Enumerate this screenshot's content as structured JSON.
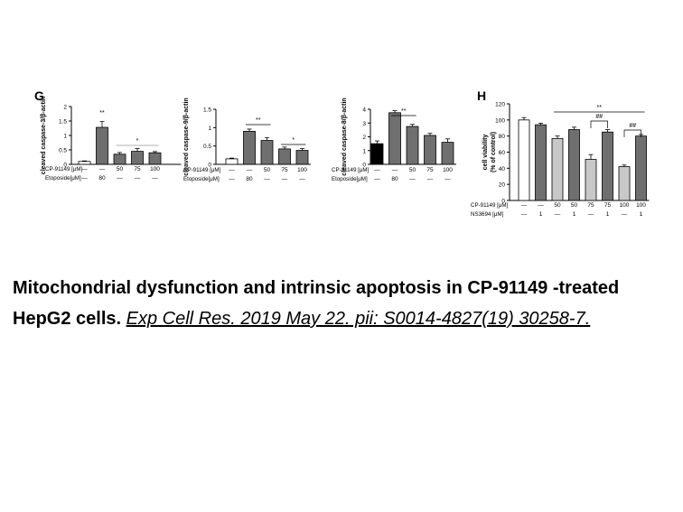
{
  "figure": {
    "panel_labels": [
      "G",
      "H"
    ]
  },
  "chart_data": [
    {
      "type": "bar",
      "panel": "G",
      "ylabel": "cleaved caspase-3/β-actin",
      "ylim": [
        0,
        2
      ],
      "yticks": [
        "0",
        "0.5",
        "1",
        "1.5",
        "2"
      ],
      "categories": [
        "1",
        "2",
        "3",
        "4",
        "5",
        "6"
      ],
      "values": [
        0.1,
        1.28,
        0.35,
        0.45,
        0.4,
        0
      ],
      "errors": [
        0.02,
        0.2,
        0.06,
        0.1,
        0.04,
        0
      ],
      "colors": [
        "#ffffff",
        "#6f6f6f",
        "#6f6f6f",
        "#6f6f6f",
        "#6f6f6f",
        "#6f6f6f"
      ],
      "hidden": [
        false,
        false,
        false,
        false,
        false,
        true
      ],
      "annotations": [
        {
          "text": "**",
          "bar": 1
        },
        {
          "text": "*",
          "bracket": [
            2,
            4
          ]
        }
      ],
      "rows": [
        {
          "label": "CP-91149 [μM]",
          "values": [
            "—",
            "—",
            "50",
            "75",
            "100"
          ]
        },
        {
          "label": "Etoposide[μM]",
          "values": [
            "—",
            "80",
            "—",
            "—",
            "—"
          ]
        }
      ]
    },
    {
      "type": "bar",
      "panel": "G",
      "ylabel": "cleaved caspase-9/β-actin",
      "ylim": [
        0,
        1.5
      ],
      "yticks": [
        "0",
        "0.5",
        "1",
        "1.5"
      ],
      "categories": [
        "1",
        "2",
        "3",
        "4",
        "5"
      ],
      "values": [
        0.15,
        0.9,
        0.65,
        0.42,
        0.38
      ],
      "errors": [
        0.02,
        0.06,
        0.08,
        0.05,
        0.05
      ],
      "colors": [
        "#ffffff",
        "#6f6f6f",
        "#6f6f6f",
        "#6f6f6f",
        "#6f6f6f"
      ],
      "annotations": [
        {
          "text": "**",
          "bracket": [
            1,
            2
          ]
        },
        {
          "text": "*",
          "bracket": [
            3,
            4
          ]
        }
      ],
      "rows": [
        {
          "label": "CP-91149 [μM]",
          "values": [
            "—",
            "—",
            "50",
            "75",
            "100"
          ]
        },
        {
          "label": "Etoposide[μM]",
          "values": [
            "—",
            "80",
            "—",
            "—",
            "—"
          ]
        }
      ]
    },
    {
      "type": "bar",
      "panel": "G",
      "ylabel": "cleaved caspase-8/β-actin",
      "ylim": [
        0,
        4
      ],
      "yticks": [
        "0",
        "1",
        "2",
        "3",
        "4"
      ],
      "categories": [
        "1",
        "2",
        "3",
        "4",
        "5"
      ],
      "values": [
        1.5,
        3.75,
        2.75,
        2.1,
        1.6
      ],
      "errors": [
        0.2,
        0.15,
        0.15,
        0.15,
        0.25
      ],
      "colors": [
        "#000000",
        "#6f6f6f",
        "#6f6f6f",
        "#6f6f6f",
        "#6f6f6f"
      ],
      "annotations": [
        {
          "text": "**",
          "bracket": [
            1,
            2
          ]
        }
      ],
      "rows": [
        {
          "label": "CP-91149 [μM]",
          "values": [
            "—",
            "—",
            "50",
            "75",
            "100"
          ]
        },
        {
          "label": "Etoposide[μM]",
          "values": [
            "—",
            "80",
            "—",
            "—",
            "—"
          ]
        }
      ]
    },
    {
      "type": "bar",
      "panel": "H",
      "ylabel": "cell viability",
      "ylabel2": "(% of control)",
      "ylim": [
        0,
        120
      ],
      "yticks": [
        "0",
        "20",
        "40",
        "60",
        "80",
        "100",
        "120"
      ],
      "categories": [
        "1",
        "2",
        "3",
        "4",
        "5",
        "6",
        "7",
        "8"
      ],
      "values": [
        100,
        94,
        77,
        88,
        51,
        85,
        42,
        80
      ],
      "errors": [
        3,
        2,
        3,
        3,
        6,
        3,
        2,
        2
      ],
      "colors": [
        "#ffffff",
        "#6f6f6f",
        "#c8c8c8",
        "#6f6f6f",
        "#c8c8c8",
        "#6f6f6f",
        "#c8c8c8",
        "#6f6f6f"
      ],
      "annotations": [
        {
          "text": "**",
          "bracket": [
            2,
            7
          ]
        },
        {
          "text": "##",
          "bracket": [
            4,
            5
          ]
        },
        {
          "text": "##",
          "bracket": [
            6,
            7
          ]
        }
      ],
      "rows": [
        {
          "label": "CP-91149 [μM]",
          "values": [
            "—",
            "—",
            "50",
            "50",
            "75",
            "75",
            "100",
            "100"
          ]
        },
        {
          "label": "NS3694 [μM]",
          "values": [
            "—",
            "1",
            "—",
            "1",
            "—",
            "1",
            "—",
            "1"
          ]
        }
      ]
    }
  ],
  "caption": {
    "title": "Mitochondrial dysfunction and intrinsic apoptosis in CP-91149 -treated HepG2 cells.",
    "citation": "Exp Cell Res. 2019 May 22. pii: S0014-4827(19) 30258-7."
  }
}
